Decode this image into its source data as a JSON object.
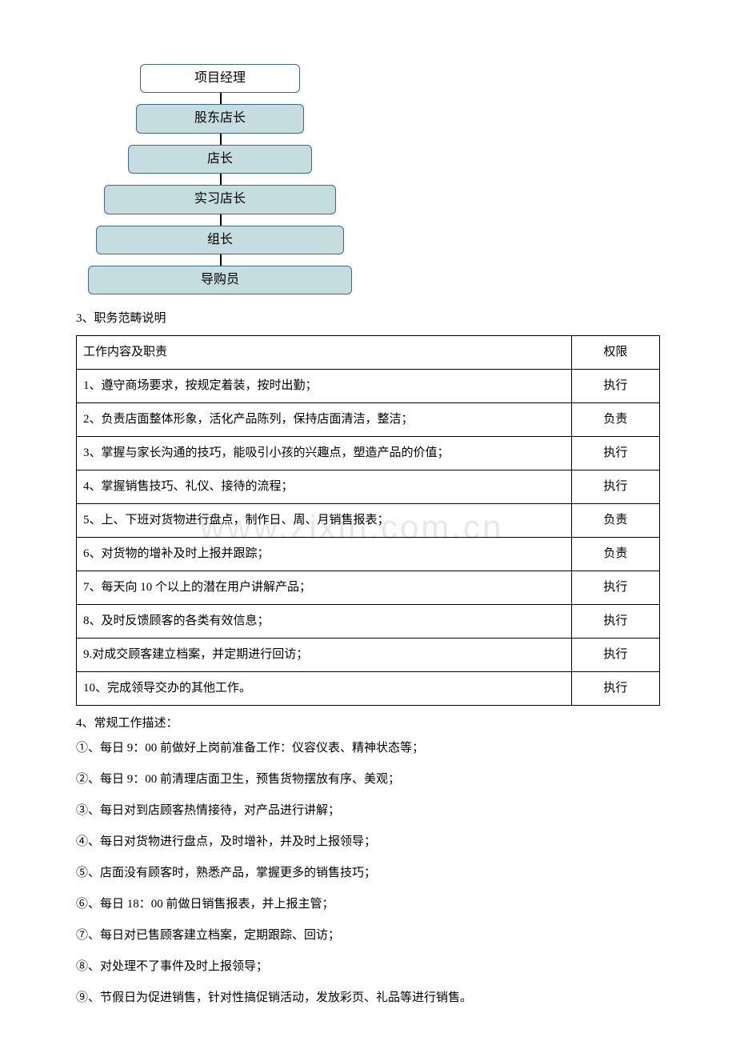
{
  "flowchart": {
    "nodes": [
      {
        "label": "项目经理",
        "bg": "#ffffff"
      },
      {
        "label": "股东店长",
        "bg": "#c5ddde"
      },
      {
        "label": "店长",
        "bg": "#c5ddde"
      },
      {
        "label": "实习店长",
        "bg": "#c5ddde"
      },
      {
        "label": "组长",
        "bg": "#c5ddde"
      },
      {
        "label": "导购员",
        "bg": "#c5ddde"
      }
    ],
    "border_color": "#3a6b8c",
    "connector_color": "#000000"
  },
  "section3": {
    "title": "3、职务范畴说明",
    "table": {
      "header": {
        "content": "工作内容及职责",
        "auth": "权限"
      },
      "rows": [
        {
          "content": "1、遵守商场要求，按规定着装，按时出勤；",
          "auth": "执行"
        },
        {
          "content": "2、负责店面整体形象，活化产品陈列，保持店面清洁，整洁；",
          "auth": "负责"
        },
        {
          "content": "3、掌握与家长沟通的技巧，能吸引小孩的兴趣点，塑造产品的价值；",
          "auth": "执行"
        },
        {
          "content": "4、掌握销售技巧、礼仪、接待的流程；",
          "auth": "执行"
        },
        {
          "content": "5、上、下班对货物进行盘点，制作日、周、月销售报表；",
          "auth": "负责"
        },
        {
          "content": "6、对货物的增补及时上报并跟踪；",
          "auth": "负责"
        },
        {
          "content": "7、每天向 10 个以上的潜在用户讲解产品；",
          "auth": "执行"
        },
        {
          "content": "8、及时反馈顾客的各类有效信息；",
          "auth": "执行"
        },
        {
          "content": "9.对成交顾客建立档案，并定期进行回访；",
          "auth": "执行"
        },
        {
          "content": "10、完成领导交办的其他工作。",
          "auth": "执行"
        }
      ]
    }
  },
  "section4": {
    "title": "4、常规工作描述：",
    "items": [
      "①、每日 9：00 前做好上岗前准备工作：仪容仪表、精神状态等；",
      "②、每日 9：00 前清理店面卫生，预售货物摆放有序、美观；",
      "③、每日对到店顾客热情接待，对产品进行讲解；",
      "④、每日对货物进行盘点，及时增补，并及时上报领导；",
      "⑤、店面没有顾客时，熟悉产品，掌握更多的销售技巧；",
      "⑥、每日 18：00 前做日销售报表，并上报主管；",
      "⑦、每日对已售顾客建立档案，定期跟踪、回访；",
      "⑧、对处理不了事件及时上报领导；",
      "⑨、节假日为促进销售，针对性搞促销活动，发放彩页、礼品等进行销售。"
    ]
  },
  "watermark": "www.zixin.com.cn"
}
